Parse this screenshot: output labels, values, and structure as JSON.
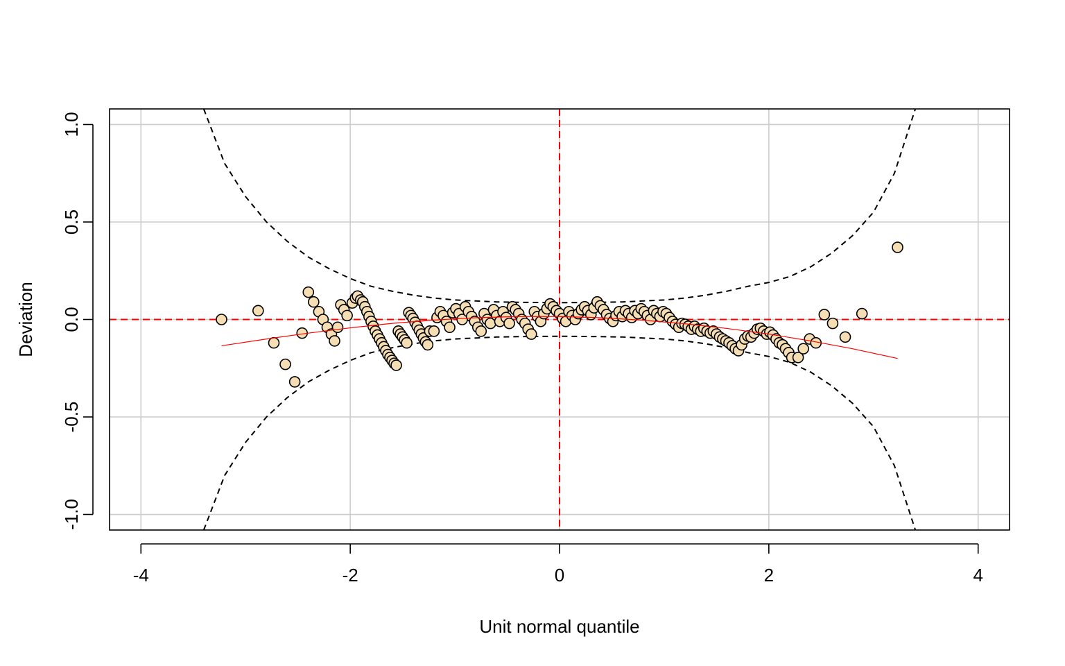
{
  "chart_data": {
    "type": "scatter",
    "title": "",
    "xlabel": "Unit normal quantile",
    "ylabel": "Deviation",
    "xlim": [
      -4.3,
      4.3
    ],
    "ylim": [
      -1.08,
      1.08
    ],
    "x_ticks": [
      -4,
      -2,
      0,
      2,
      4
    ],
    "x_tick_labels": [
      "-4",
      "-2",
      "0",
      "2",
      "4"
    ],
    "y_ticks": [
      -1.0,
      -0.5,
      0.0,
      0.5,
      1.0
    ],
    "y_tick_labels": [
      "-1.0",
      "-0.5",
      "0.0",
      "0.5",
      "1.0"
    ],
    "grid": true,
    "reference_lines": {
      "x": 0,
      "y": 0
    },
    "colors": {
      "point_fill": "#F5DEB3",
      "point_stroke": "#000000",
      "reference": "#FF0000",
      "fit_curve": "#FF0000",
      "confidence_band": "#000000",
      "grid": "#CCCCCC"
    },
    "confidence_band": {
      "x": [
        -3.4,
        -3.2,
        -3.0,
        -2.8,
        -2.6,
        -2.4,
        -2.2,
        -2.0,
        -1.8,
        -1.6,
        -1.4,
        -1.2,
        -1.0,
        -0.8,
        -0.6,
        -0.4,
        -0.2,
        0.0,
        0.2,
        0.4,
        0.6,
        0.8,
        1.0,
        1.2,
        1.4,
        1.6,
        1.8,
        2.0,
        2.2,
        2.4,
        2.6,
        2.8,
        3.0,
        3.2,
        3.4
      ],
      "upper": [
        1.08,
        0.8,
        0.63,
        0.5,
        0.4,
        0.32,
        0.26,
        0.21,
        0.17,
        0.145,
        0.125,
        0.11,
        0.1,
        0.095,
        0.09,
        0.088,
        0.087,
        0.086,
        0.087,
        0.088,
        0.09,
        0.095,
        0.1,
        0.11,
        0.125,
        0.145,
        0.17,
        0.19,
        0.22,
        0.27,
        0.34,
        0.43,
        0.55,
        0.75,
        1.08
      ],
      "lower": [
        -1.08,
        -0.8,
        -0.63,
        -0.5,
        -0.4,
        -0.32,
        -0.26,
        -0.21,
        -0.17,
        -0.145,
        -0.125,
        -0.11,
        -0.1,
        -0.095,
        -0.09,
        -0.088,
        -0.087,
        -0.086,
        -0.087,
        -0.088,
        -0.09,
        -0.095,
        -0.1,
        -0.11,
        -0.125,
        -0.145,
        -0.17,
        -0.19,
        -0.22,
        -0.27,
        -0.34,
        -0.43,
        -0.55,
        -0.75,
        -1.08
      ]
    },
    "fit_curve": {
      "x": [
        -3.23,
        -2.8,
        -2.4,
        -2.0,
        -1.6,
        -1.2,
        -0.8,
        -0.4,
        0.0,
        0.4,
        0.8,
        1.2,
        1.6,
        2.0,
        2.4,
        2.8,
        3.23
      ],
      "y": [
        -0.135,
        -0.1,
        -0.07,
        -0.043,
        -0.02,
        -0.003,
        0.009,
        0.015,
        0.015,
        0.009,
        -0.004,
        -0.022,
        -0.046,
        -0.075,
        -0.11,
        -0.15,
        -0.2
      ]
    },
    "points": [
      [
        -3.23,
        0.0
      ],
      [
        -2.88,
        0.045
      ],
      [
        -2.73,
        -0.12
      ],
      [
        -2.62,
        -0.23
      ],
      [
        -2.53,
        -0.32
      ],
      [
        -2.46,
        -0.07
      ],
      [
        -2.4,
        0.14
      ],
      [
        -2.35,
        0.09
      ],
      [
        -2.3,
        0.04
      ],
      [
        -2.26,
        0.0
      ],
      [
        -2.22,
        -0.04
      ],
      [
        -2.18,
        -0.075
      ],
      [
        -2.15,
        -0.11
      ],
      [
        -2.12,
        -0.04
      ],
      [
        -2.09,
        0.075
      ],
      [
        -2.06,
        0.05
      ],
      [
        -2.03,
        0.02
      ],
      [
        -1.98,
        0.085
      ],
      [
        -1.95,
        0.11
      ],
      [
        -1.93,
        0.12
      ],
      [
        -1.9,
        0.1
      ],
      [
        -1.88,
        0.09
      ],
      [
        -1.86,
        0.065
      ],
      [
        -1.84,
        0.04
      ],
      [
        -1.82,
        0.015
      ],
      [
        -1.8,
        -0.01
      ],
      [
        -1.78,
        -0.035
      ],
      [
        -1.76,
        -0.06
      ],
      [
        -1.74,
        -0.08
      ],
      [
        -1.72,
        -0.1
      ],
      [
        -1.7,
        -0.12
      ],
      [
        -1.68,
        -0.14
      ],
      [
        -1.66,
        -0.16
      ],
      [
        -1.64,
        -0.18
      ],
      [
        -1.62,
        -0.195
      ],
      [
        -1.6,
        -0.21
      ],
      [
        -1.58,
        -0.225
      ],
      [
        -1.56,
        -0.235
      ],
      [
        -1.54,
        -0.06
      ],
      [
        -1.52,
        -0.075
      ],
      [
        -1.5,
        -0.09
      ],
      [
        -1.48,
        -0.105
      ],
      [
        -1.46,
        -0.12
      ],
      [
        -1.44,
        0.035
      ],
      [
        -1.42,
        0.02
      ],
      [
        -1.4,
        0.005
      ],
      [
        -1.38,
        -0.015
      ],
      [
        -1.36,
        -0.035
      ],
      [
        -1.34,
        -0.055
      ],
      [
        -1.32,
        -0.075
      ],
      [
        -1.3,
        -0.095
      ],
      [
        -1.28,
        -0.115
      ],
      [
        -1.26,
        -0.13
      ],
      [
        -1.24,
        -0.06
      ],
      [
        -1.2,
        -0.06
      ],
      [
        -1.17,
        0.01
      ],
      [
        -1.14,
        0.04
      ],
      [
        -1.11,
        0.02
      ],
      [
        -1.08,
        -0.01
      ],
      [
        -1.05,
        -0.04
      ],
      [
        -1.02,
        0.035
      ],
      [
        -0.99,
        0.055
      ],
      [
        -0.96,
        0.03
      ],
      [
        -0.93,
        0.0
      ],
      [
        -0.9,
        0.065
      ],
      [
        -0.87,
        0.04
      ],
      [
        -0.84,
        0.015
      ],
      [
        -0.81,
        -0.01
      ],
      [
        -0.78,
        -0.04
      ],
      [
        -0.75,
        -0.06
      ],
      [
        -0.72,
        0.03
      ],
      [
        -0.69,
        0.0
      ],
      [
        -0.66,
        -0.02
      ],
      [
        -0.63,
        0.05
      ],
      [
        -0.6,
        0.02
      ],
      [
        -0.57,
        -0.01
      ],
      [
        -0.54,
        0.04
      ],
      [
        -0.51,
        0.01
      ],
      [
        -0.48,
        -0.02
      ],
      [
        -0.45,
        0.065
      ],
      [
        -0.42,
        0.05
      ],
      [
        -0.39,
        0.03
      ],
      [
        -0.36,
        0.0
      ],
      [
        -0.33,
        -0.02
      ],
      [
        -0.3,
        -0.05
      ],
      [
        -0.27,
        -0.075
      ],
      [
        -0.24,
        0.04
      ],
      [
        -0.21,
        0.015
      ],
      [
        -0.18,
        -0.01
      ],
      [
        -0.15,
        0.03
      ],
      [
        -0.12,
        0.055
      ],
      [
        -0.09,
        0.08
      ],
      [
        -0.06,
        0.065
      ],
      [
        -0.03,
        0.045
      ],
      [
        0.0,
        0.03
      ],
      [
        0.03,
        0.005
      ],
      [
        0.06,
        -0.01
      ],
      [
        0.09,
        0.04
      ],
      [
        0.12,
        0.02
      ],
      [
        0.15,
        0.0
      ],
      [
        0.18,
        0.03
      ],
      [
        0.21,
        0.05
      ],
      [
        0.24,
        0.065
      ],
      [
        0.27,
        0.045
      ],
      [
        0.3,
        0.025
      ],
      [
        0.33,
        0.06
      ],
      [
        0.36,
        0.09
      ],
      [
        0.39,
        0.07
      ],
      [
        0.42,
        0.05
      ],
      [
        0.45,
        0.025
      ],
      [
        0.48,
        0.005
      ],
      [
        0.51,
        -0.01
      ],
      [
        0.54,
        0.02
      ],
      [
        0.57,
        0.04
      ],
      [
        0.6,
        0.015
      ],
      [
        0.63,
        0.045
      ],
      [
        0.66,
        0.03
      ],
      [
        0.69,
        0.01
      ],
      [
        0.72,
        0.045
      ],
      [
        0.75,
        0.03
      ],
      [
        0.78,
        0.055
      ],
      [
        0.81,
        0.04
      ],
      [
        0.84,
        0.02
      ],
      [
        0.87,
        0.0
      ],
      [
        0.9,
        0.045
      ],
      [
        0.93,
        0.03
      ],
      [
        0.96,
        0.015
      ],
      [
        0.99,
        0.04
      ],
      [
        1.02,
        0.03
      ],
      [
        1.05,
        0.01
      ],
      [
        1.08,
        -0.01
      ],
      [
        1.11,
        -0.025
      ],
      [
        1.14,
        -0.04
      ],
      [
        1.17,
        -0.02
      ],
      [
        1.2,
        -0.025
      ],
      [
        1.23,
        -0.035
      ],
      [
        1.26,
        -0.05
      ],
      [
        1.29,
        -0.035
      ],
      [
        1.32,
        -0.05
      ],
      [
        1.35,
        -0.06
      ],
      [
        1.38,
        -0.045
      ],
      [
        1.41,
        -0.06
      ],
      [
        1.44,
        -0.07
      ],
      [
        1.47,
        -0.06
      ],
      [
        1.5,
        -0.075
      ],
      [
        1.53,
        -0.09
      ],
      [
        1.56,
        -0.1
      ],
      [
        1.59,
        -0.11
      ],
      [
        1.62,
        -0.12
      ],
      [
        1.65,
        -0.135
      ],
      [
        1.68,
        -0.15
      ],
      [
        1.71,
        -0.16
      ],
      [
        1.74,
        -0.13
      ],
      [
        1.77,
        -0.1
      ],
      [
        1.8,
        -0.085
      ],
      [
        1.83,
        -0.09
      ],
      [
        1.86,
        -0.07
      ],
      [
        1.89,
        -0.05
      ],
      [
        1.92,
        -0.045
      ],
      [
        1.95,
        -0.06
      ],
      [
        1.98,
        -0.075
      ],
      [
        2.01,
        -0.065
      ],
      [
        2.04,
        -0.08
      ],
      [
        2.07,
        -0.1
      ],
      [
        2.1,
        -0.12
      ],
      [
        2.13,
        -0.13
      ],
      [
        2.16,
        -0.15
      ],
      [
        2.19,
        -0.17
      ],
      [
        2.22,
        -0.195
      ],
      [
        2.28,
        -0.195
      ],
      [
        2.33,
        -0.15
      ],
      [
        2.39,
        -0.1
      ],
      [
        2.45,
        -0.12
      ],
      [
        2.53,
        0.025
      ],
      [
        2.61,
        -0.02
      ],
      [
        2.73,
        -0.09
      ],
      [
        2.89,
        0.03
      ],
      [
        3.23,
        0.37
      ]
    ]
  }
}
